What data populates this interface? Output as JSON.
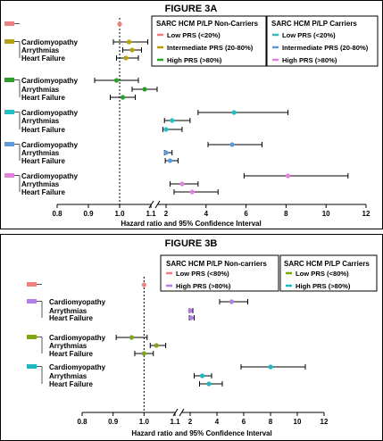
{
  "chart_data": [
    {
      "type": "forest",
      "title": "FIGURE 3A",
      "xlabel": "Hazard ratio and 95% Confidence Interval",
      "x_scale": "broken (linear below break, log above)",
      "xticks": [
        "0.8",
        "0.9",
        "1.0",
        "1.1",
        "2",
        "4",
        "6",
        "8",
        "10",
        "12"
      ],
      "reference_line": 1.0,
      "legends": [
        {
          "title": "SARC HCM P/LP Non-Carriers",
          "entries": [
            {
              "label": "Low PRS (<20%)",
              "color": "#f08080"
            },
            {
              "label": "Intermediate PRS (20-80%)",
              "color": "#b5a10d"
            },
            {
              "label": "High PRS (>80%)",
              "color": "#2aa02a"
            }
          ]
        },
        {
          "title": "SARC HCM P/LP Carriers",
          "entries": [
            {
              "label": "Low PRS (<20%)",
              "color": "#1fc1c1"
            },
            {
              "label": "Intermediate PRS (20-80%)",
              "color": "#5a9be0"
            },
            {
              "label": "High PRS (>80%)",
              "color": "#e57fe0"
            }
          ]
        }
      ],
      "groups": [
        {
          "color": "#f08080",
          "rows": [
            {
              "label": "",
              "hr": 1.0,
              "ci": [
                1.0,
                1.0
              ]
            }
          ]
        },
        {
          "color": "#b5a10d",
          "rows": [
            {
              "label": "Cardiomyopathy",
              "hr": 1.03,
              "ci": [
                0.98,
                1.09
              ]
            },
            {
              "label": "Arrythmias",
              "hr": 1.04,
              "ci": [
                1.01,
                1.07
              ]
            },
            {
              "label": "Heart Failure",
              "hr": 1.02,
              "ci": [
                0.99,
                1.06
              ]
            }
          ]
        },
        {
          "color": "#2aa02a",
          "rows": [
            {
              "label": "Cardiomyopathy",
              "hr": 0.99,
              "ci": [
                0.92,
                1.06
              ]
            },
            {
              "label": "Arrythmias",
              "hr": 1.08,
              "ci": [
                1.04,
                1.12
              ]
            },
            {
              "label": "Heart Failure",
              "hr": 1.01,
              "ci": [
                0.97,
                1.05
              ]
            }
          ]
        },
        {
          "color": "#1fc1c1",
          "rows": [
            {
              "label": "Cardiomyopathy",
              "hr": 5.4,
              "ci": [
                3.6,
                8.1
              ]
            },
            {
              "label": "Arrythmias",
              "hr": 2.3,
              "ci": [
                1.8,
                3.2
              ]
            },
            {
              "label": "Heart Failure",
              "hr": 2.0,
              "ci": [
                1.6,
                2.8
              ]
            }
          ]
        },
        {
          "color": "#5a9be0",
          "rows": [
            {
              "label": "Cardiomyopathy",
              "hr": 5.3,
              "ci": [
                4.1,
                6.8
              ]
            },
            {
              "label": "Arrythmias",
              "hr": 2.0,
              "ci": [
                1.8,
                2.3
              ]
            },
            {
              "label": "Heart Failure",
              "hr": 2.2,
              "ci": [
                1.9,
                2.6
              ]
            }
          ]
        },
        {
          "color": "#e57fe0",
          "rows": [
            {
              "label": "Cardiomyopathy",
              "hr": 8.1,
              "ci": [
                5.9,
                11.1
              ]
            },
            {
              "label": "Arrythmias",
              "hr": 2.8,
              "ci": [
                2.2,
                3.6
              ]
            },
            {
              "label": "Heart Failure",
              "hr": 3.3,
              "ci": [
                2.4,
                4.6
              ]
            }
          ]
        }
      ]
    },
    {
      "type": "forest",
      "title": "FIGURE 3B",
      "xlabel": "Hazard ratio and 95% Confidence Interval",
      "x_scale": "broken (linear below break, log above)",
      "xticks": [
        "0.8",
        "0.9",
        "1.0",
        "1.1",
        "2",
        "4",
        "6",
        "8",
        "10",
        "12"
      ],
      "reference_line": 1.0,
      "legends": [
        {
          "title": "SARC HCM P/LP Non-carriers",
          "entries": [
            {
              "label": "Low PRS (<80%)",
              "color": "#f08080"
            },
            {
              "label": "High PRS (>80%)",
              "color": "#b27ee8"
            }
          ]
        },
        {
          "title": "SARC HCM P/LP Carriers",
          "entries": [
            {
              "label": "Low PRS (<80%)",
              "color": "#7fa614"
            },
            {
              "label": "High PRS (>80%)",
              "color": "#1fb8c1"
            }
          ]
        }
      ],
      "groups": [
        {
          "color": "#f08080",
          "rows": [
            {
              "label": "",
              "hr": 1.0,
              "ci": [
                1.0,
                1.0
              ]
            }
          ]
        },
        {
          "color": "#b27ee8",
          "rows": [
            {
              "label": "Cardiomyopathy",
              "hr": 5.1,
              "ci": [
                4.2,
                6.3
              ]
            },
            {
              "label": "Arrythmias",
              "hr": 2.0,
              "ci": [
                1.9,
                2.2
              ]
            },
            {
              "label": "Heart Failure",
              "hr": 2.1,
              "ci": [
                1.9,
                2.3
              ]
            }
          ]
        },
        {
          "color": "#7fa614",
          "rows": [
            {
              "label": "Cardiomyopathy",
              "hr": 0.96,
              "ci": [
                0.91,
                1.01
              ]
            },
            {
              "label": "Arrythmias",
              "hr": 1.04,
              "ci": [
                1.02,
                1.07
              ]
            },
            {
              "label": "Heart Failure",
              "hr": 1.0,
              "ci": [
                0.97,
                1.03
              ]
            }
          ]
        },
        {
          "color": "#1fb8c1",
          "rows": [
            {
              "label": "Cardiomyopathy",
              "hr": 8.0,
              "ci": [
                5.8,
                10.6
              ]
            },
            {
              "label": "Arrythmias",
              "hr": 2.9,
              "ci": [
                2.3,
                3.6
              ]
            },
            {
              "label": "Heart Failure",
              "hr": 3.4,
              "ci": [
                2.7,
                4.4
              ]
            }
          ]
        }
      ]
    }
  ]
}
